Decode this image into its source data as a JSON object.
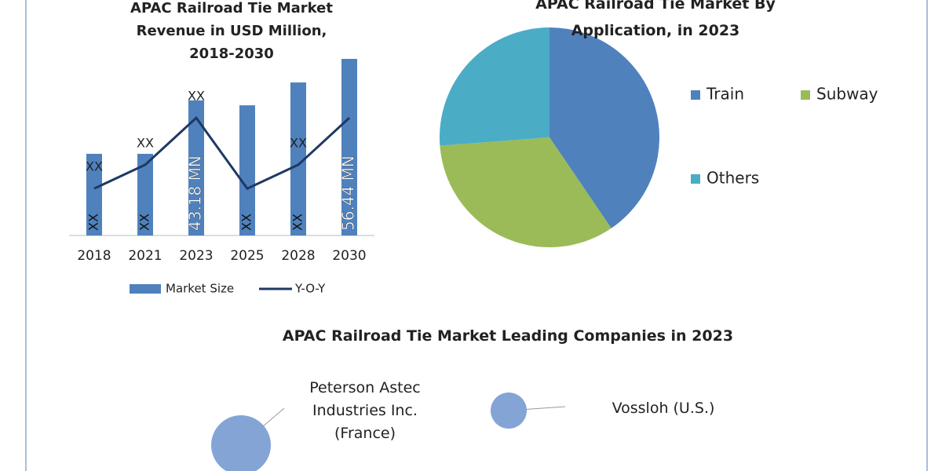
{
  "chart_data": [
    {
      "type": "bar",
      "title": "APAC Railroad Tie Market Revenue in USD Million, 2018-2030",
      "categories": [
        "2018",
        "2021",
        "2023",
        "2025",
        "2028",
        "2030"
      ],
      "series": [
        {
          "name": "Market Size",
          "type": "bar",
          "color": "#4f81bd",
          "values": [
            26.1,
            26.1,
            43.18,
            41.6,
            48.9,
            56.44
          ],
          "value_labels": [
            "XX",
            "XX",
            "43.18 MN",
            "XX",
            "XX",
            "56.44 MN"
          ]
        },
        {
          "name": "Y-O-Y",
          "type": "line",
          "color": "#1f3864",
          "values": [
            15,
            22.6,
            37.6,
            15,
            22.6,
            37.6
          ],
          "value_labels": [
            "XX",
            "XX",
            "XX",
            null,
            "XX",
            null
          ]
        }
      ]
    },
    {
      "type": "pie",
      "title": "APAC Railroad Tie Market By Application, in 2023",
      "categories": [
        "Train",
        "Subway",
        "Others"
      ],
      "values": [
        40.5,
        33.3,
        26.2
      ],
      "colors": [
        "#4f81bd",
        "#9bbb59",
        "#4bacc6"
      ]
    }
  ],
  "companies": {
    "title": "APAC Railroad Tie Market Leading Companies in 2023",
    "items": [
      {
        "label": "Peterson Astec Industries Inc. (France)"
      },
      {
        "label": "Vossloh (U.S.)"
      }
    ]
  }
}
